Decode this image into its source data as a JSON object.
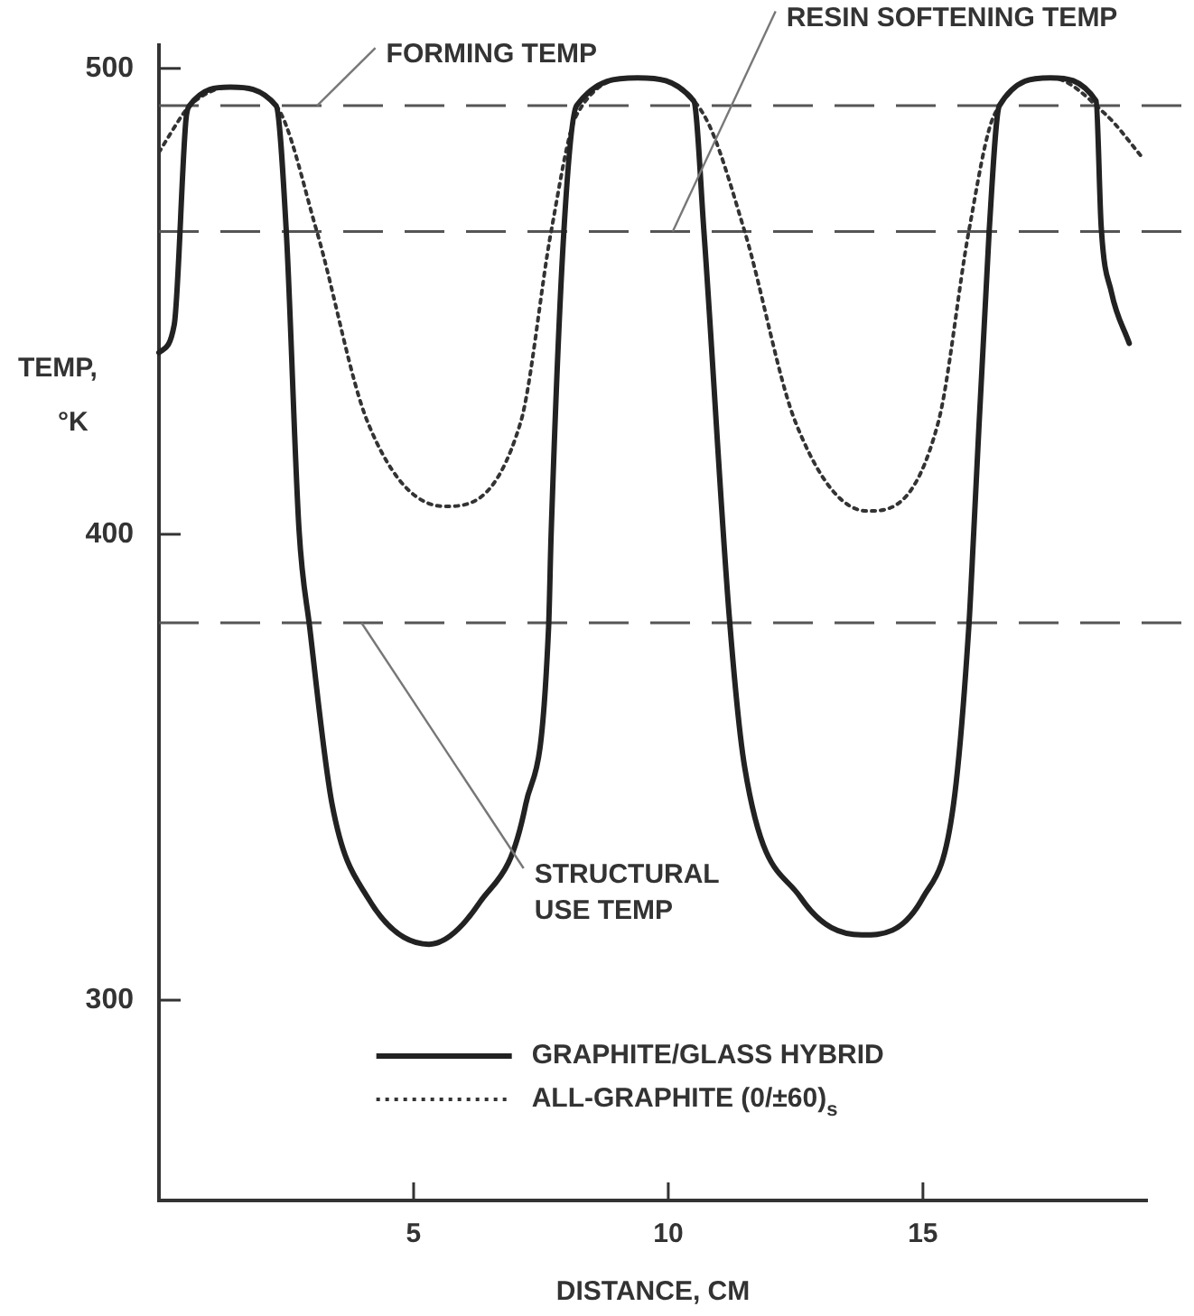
{
  "chart_data": {
    "type": "line",
    "xlabel": "DISTANCE, CM",
    "ylabel": "TEMP, °K",
    "xlim": [
      0,
      19.4
    ],
    "ylim": [
      257,
      505
    ],
    "xticks": [
      5,
      10,
      15
    ],
    "yticks": [
      300,
      400,
      500
    ],
    "grid": false,
    "legend": "bottom",
    "marker": "none",
    "series": [
      {
        "name": "GRAPHITE/GLASS HYBRID",
        "color": "#222222",
        "line_style": "solid",
        "x": [
          0,
          0.3,
          0.53,
          0.6,
          1.4,
          2.3,
          2.5,
          2.75,
          2.96,
          3.4,
          4.1,
          5.3,
          6.3,
          7.2,
          7.65,
          7.7,
          7.95,
          8.2,
          9.4,
          10.5,
          10.7,
          11.2,
          11.5,
          12.6,
          13.8,
          15.0,
          15.6,
          15.9,
          16.0,
          16.3,
          16.5,
          17.5,
          18.4,
          18.5,
          18.7,
          19.05
        ],
        "values": [
          439,
          445,
          489,
          492,
          496,
          492,
          465,
          401,
          380,
          342,
          322,
          312,
          321,
          342,
          380,
          400,
          465,
          492,
          498,
          493,
          465,
          382,
          350,
          322,
          314,
          322,
          342,
          380,
          401,
          465,
          492,
          498,
          493,
          466,
          452,
          441
        ]
      },
      {
        "name": "ALL-GRAPHITE (0/±60)$_{s}$",
        "color": "#333333",
        "line_style": "dotted",
        "x": [
          0,
          0.46,
          0.6,
          1.4,
          2.3,
          3.1,
          4.1,
          5.6,
          7.1,
          7.7,
          8.2,
          9.4,
          10.7,
          11.5,
          12.5,
          13.9,
          15.3,
          15.9,
          16.4,
          17.5,
          18.6,
          19.3
        ],
        "values": [
          482,
          490,
          492,
          496,
          492,
          465,
          424,
          406,
          424,
          465,
          490,
          498,
          490,
          465,
          424,
          405,
          424,
          465,
          490,
          498,
          490,
          481
        ]
      }
    ],
    "ref_lines": [
      {
        "axis": "y",
        "value": 492,
        "label": "FORMING TEMP",
        "color": "#555555",
        "line_style": "dashed"
      },
      {
        "axis": "y",
        "value": 465,
        "label": "RESIN SOFTENING TEMP",
        "color": "#555555",
        "line_style": "dashed"
      },
      {
        "axis": "y",
        "value": 381,
        "label": "STRUCTURAL USE TEMP",
        "color": "#555555",
        "line_style": "dashed"
      }
    ]
  }
}
